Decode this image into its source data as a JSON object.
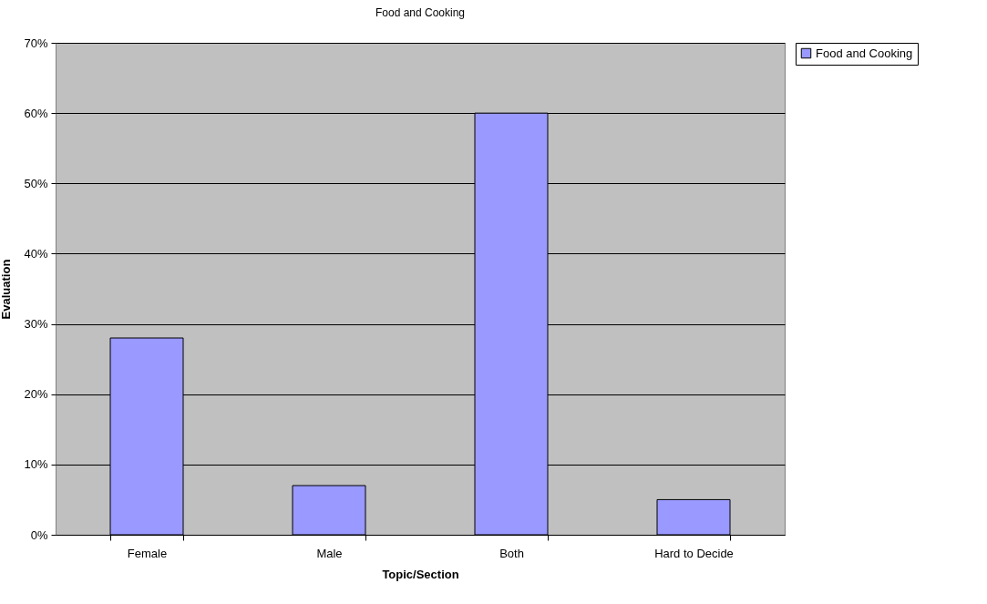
{
  "chart_data": {
    "type": "bar",
    "title": "Food and Cooking",
    "xlabel": "Topic/Section",
    "ylabel": "Evaluation",
    "categories": [
      "Female",
      "Male",
      "Both",
      "Hard to Decide"
    ],
    "series": [
      {
        "name": "Food and Cooking",
        "color": "#9999ff",
        "values": [
          28,
          7,
          60,
          5
        ]
      }
    ],
    "ylim": [
      0,
      70
    ],
    "yticks": [
      {
        "value": 0,
        "label": "0%"
      },
      {
        "value": 10,
        "label": "10%"
      },
      {
        "value": 20,
        "label": "20%"
      },
      {
        "value": 30,
        "label": "30%"
      },
      {
        "value": 40,
        "label": "40%"
      },
      {
        "value": 50,
        "label": "50%"
      },
      {
        "value": 60,
        "label": "60%"
      },
      {
        "value": 70,
        "label": "70%"
      }
    ],
    "grid": "y",
    "legend": "right"
  }
}
